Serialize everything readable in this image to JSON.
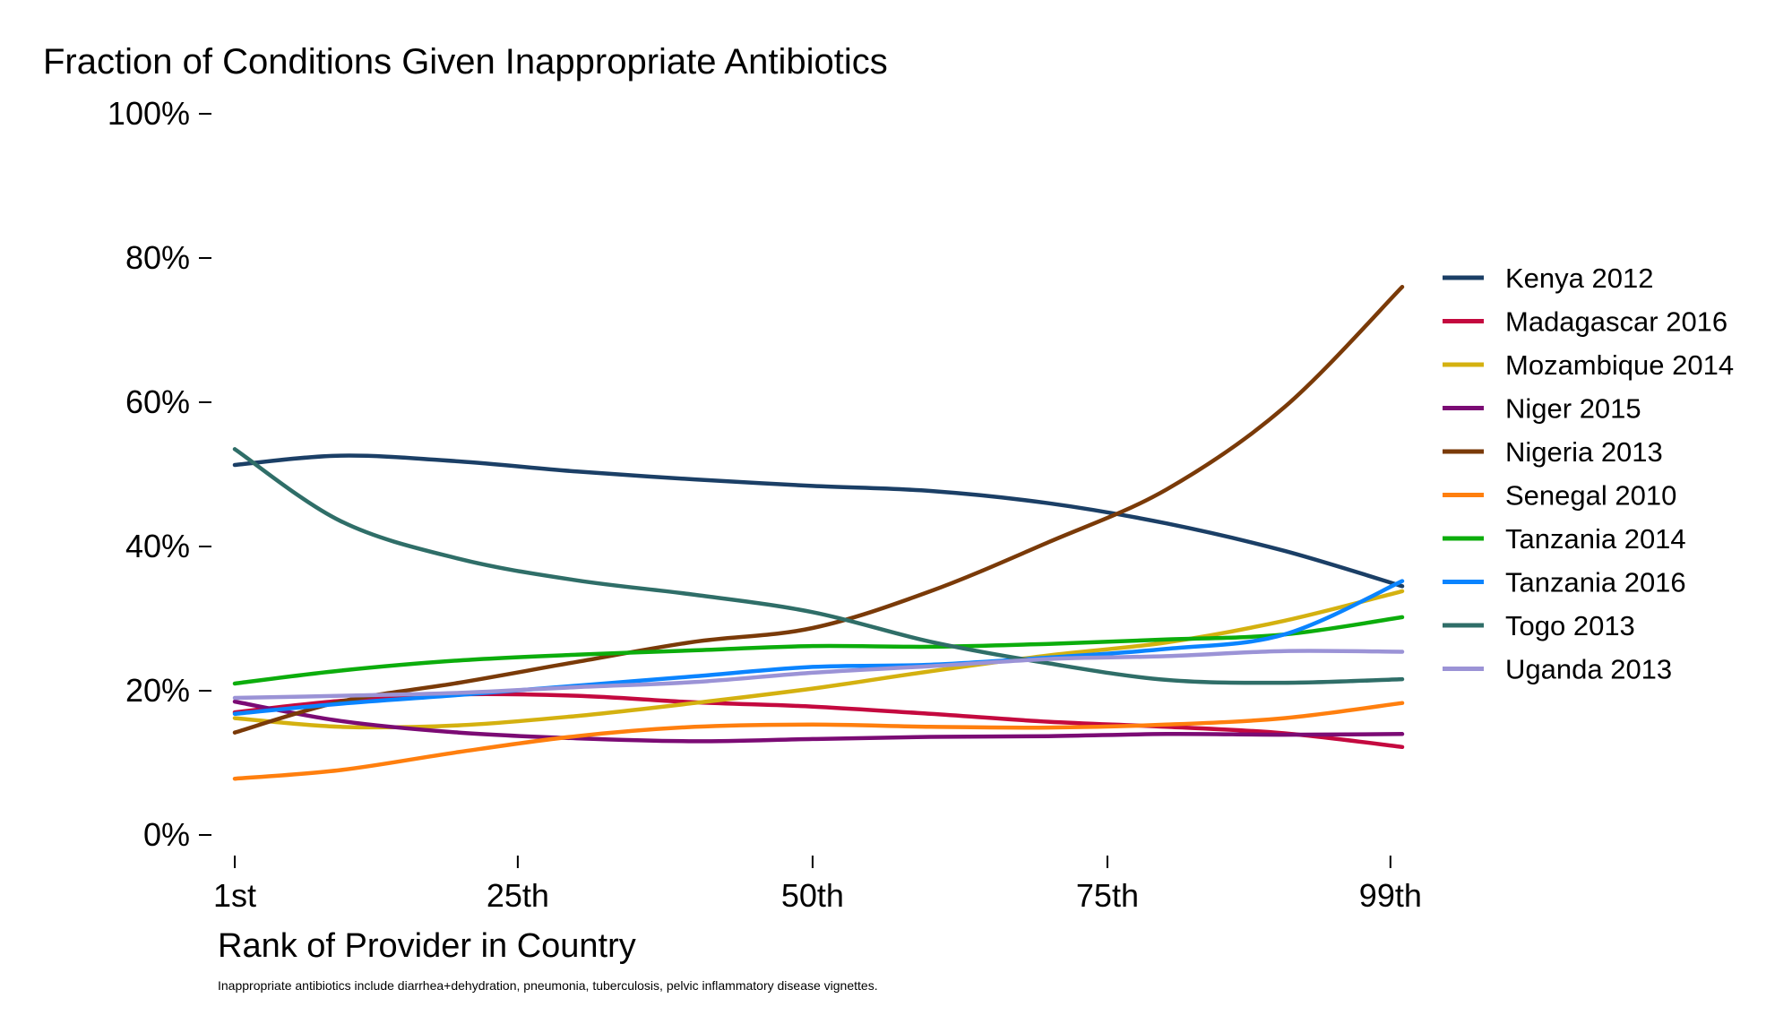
{
  "chart_data": {
    "type": "line",
    "title": "Fraction of Conditions Given Inappropriate Antibiotics",
    "xlabel": "Rank of Provider in Country",
    "ylabel": "",
    "note": "Inappropriate antibiotics include diarrhea+dehydration, pneumonia, tuberculosis, pelvic inflammatory disease vignettes.",
    "x_ticks": [
      {
        "value": 1,
        "label": "1st"
      },
      {
        "value": 25,
        "label": "25th"
      },
      {
        "value": 50,
        "label": "50th"
      },
      {
        "value": 75,
        "label": "75th"
      },
      {
        "value": 99,
        "label": "99th"
      }
    ],
    "y_ticks": [
      {
        "value": 0,
        "label": "0%"
      },
      {
        "value": 20,
        "label": "20%"
      },
      {
        "value": 40,
        "label": "40%"
      },
      {
        "value": 60,
        "label": "60%"
      },
      {
        "value": 80,
        "label": "80%"
      },
      {
        "value": 100,
        "label": "100%"
      }
    ],
    "xlim": [
      1,
      100
    ],
    "ylim": [
      0,
      100
    ],
    "grid": false,
    "legend_position": "right",
    "x": [
      1,
      10,
      20,
      30,
      40,
      50,
      60,
      70,
      80,
      90,
      100
    ],
    "series": [
      {
        "name": "Kenya 2012",
        "color": "#1b3f66",
        "values": [
          51.3,
          52.6,
          51.8,
          50.4,
          49.3,
          48.4,
          47.7,
          46.0,
          43.2,
          39.4,
          34.5
        ]
      },
      {
        "name": "Madagascar 2016",
        "color": "#c4093f",
        "values": [
          17.0,
          18.6,
          19.5,
          19.3,
          18.4,
          17.8,
          16.8,
          15.7,
          15.0,
          14.1,
          12.2
        ]
      },
      {
        "name": "Mozambique 2014",
        "color": "#d4b110",
        "values": [
          16.2,
          15.0,
          15.2,
          16.5,
          18.3,
          20.3,
          22.7,
          24.9,
          26.7,
          29.7,
          33.8
        ]
      },
      {
        "name": "Niger 2015",
        "color": "#7b0b74",
        "values": [
          18.5,
          15.8,
          14.2,
          13.4,
          13.0,
          13.3,
          13.6,
          13.7,
          14.0,
          13.9,
          14.0
        ]
      },
      {
        "name": "Nigeria 2013",
        "color": "#7a3a08",
        "values": [
          14.2,
          18.5,
          21.1,
          24.0,
          26.8,
          28.7,
          33.8,
          40.6,
          47.9,
          59.3,
          76.0
        ]
      },
      {
        "name": "Senegal 2010",
        "color": "#ff7f0e",
        "values": [
          7.8,
          9.0,
          11.5,
          13.7,
          15.0,
          15.3,
          15.0,
          14.9,
          15.3,
          16.2,
          18.3
        ]
      },
      {
        "name": "Tanzania 2014",
        "color": "#0cad0c",
        "values": [
          21.0,
          22.8,
          24.2,
          25.0,
          25.6,
          26.2,
          26.1,
          26.5,
          27.1,
          27.8,
          30.2
        ]
      },
      {
        "name": "Tanzania 2016",
        "color": "#0a84ff",
        "values": [
          16.8,
          18.2,
          19.4,
          20.7,
          22.0,
          23.3,
          23.6,
          24.6,
          25.8,
          27.8,
          35.2
        ]
      },
      {
        "name": "Togo 2013",
        "color": "#2f6e68",
        "values": [
          53.5,
          43.5,
          38.3,
          35.3,
          33.3,
          30.9,
          26.8,
          23.8,
          21.5,
          21.1,
          21.6
        ]
      },
      {
        "name": "Uganda 2013",
        "color": "#9b93d6",
        "values": [
          19.0,
          19.3,
          19.7,
          20.5,
          21.2,
          22.5,
          23.4,
          24.4,
          24.8,
          25.5,
          25.4
        ]
      }
    ]
  }
}
